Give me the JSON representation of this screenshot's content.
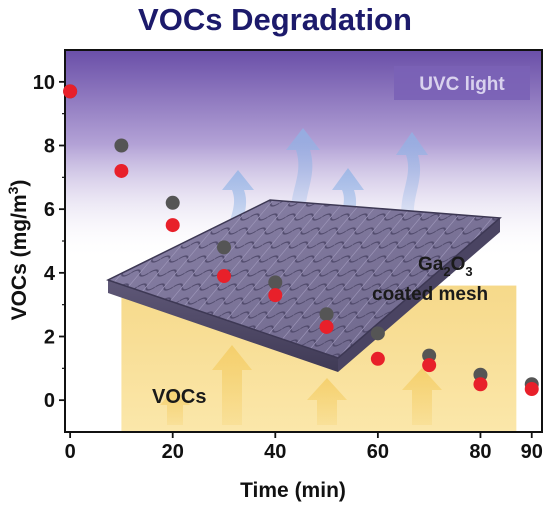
{
  "chart_data": {
    "type": "scatter",
    "title": "VOCs Degradation",
    "xlabel": "Time (min)",
    "ylabel": "VOCs (mg/m3)",
    "xlim": [
      -1,
      92
    ],
    "ylim": [
      -1,
      11
    ],
    "xticks": [
      0,
      20,
      40,
      60,
      80,
      90
    ],
    "yticks": [
      0,
      2,
      4,
      6,
      8,
      10
    ],
    "series": [
      {
        "color": "#555555",
        "x": [
          0,
          10,
          20,
          30,
          40,
          50,
          60,
          70,
          80,
          90
        ],
        "y": [
          9.7,
          8.0,
          6.2,
          4.8,
          3.7,
          2.7,
          2.1,
          1.4,
          0.8,
          0.5
        ]
      },
      {
        "color": "#e8202a",
        "x": [
          0,
          10,
          20,
          30,
          40,
          50,
          60,
          70,
          80,
          90
        ],
        "y": [
          9.7,
          7.2,
          5.5,
          3.9,
          3.3,
          2.3,
          1.3,
          1.1,
          0.5,
          0.35
        ]
      }
    ],
    "annotations": {
      "uv": "UVC light",
      "mesh_formula": {
        "a": "Ga",
        "a_sub": "2",
        "b": "O",
        "b_sub": "3"
      },
      "mesh_line2": "coated mesh",
      "vocs": "VOCs"
    }
  }
}
